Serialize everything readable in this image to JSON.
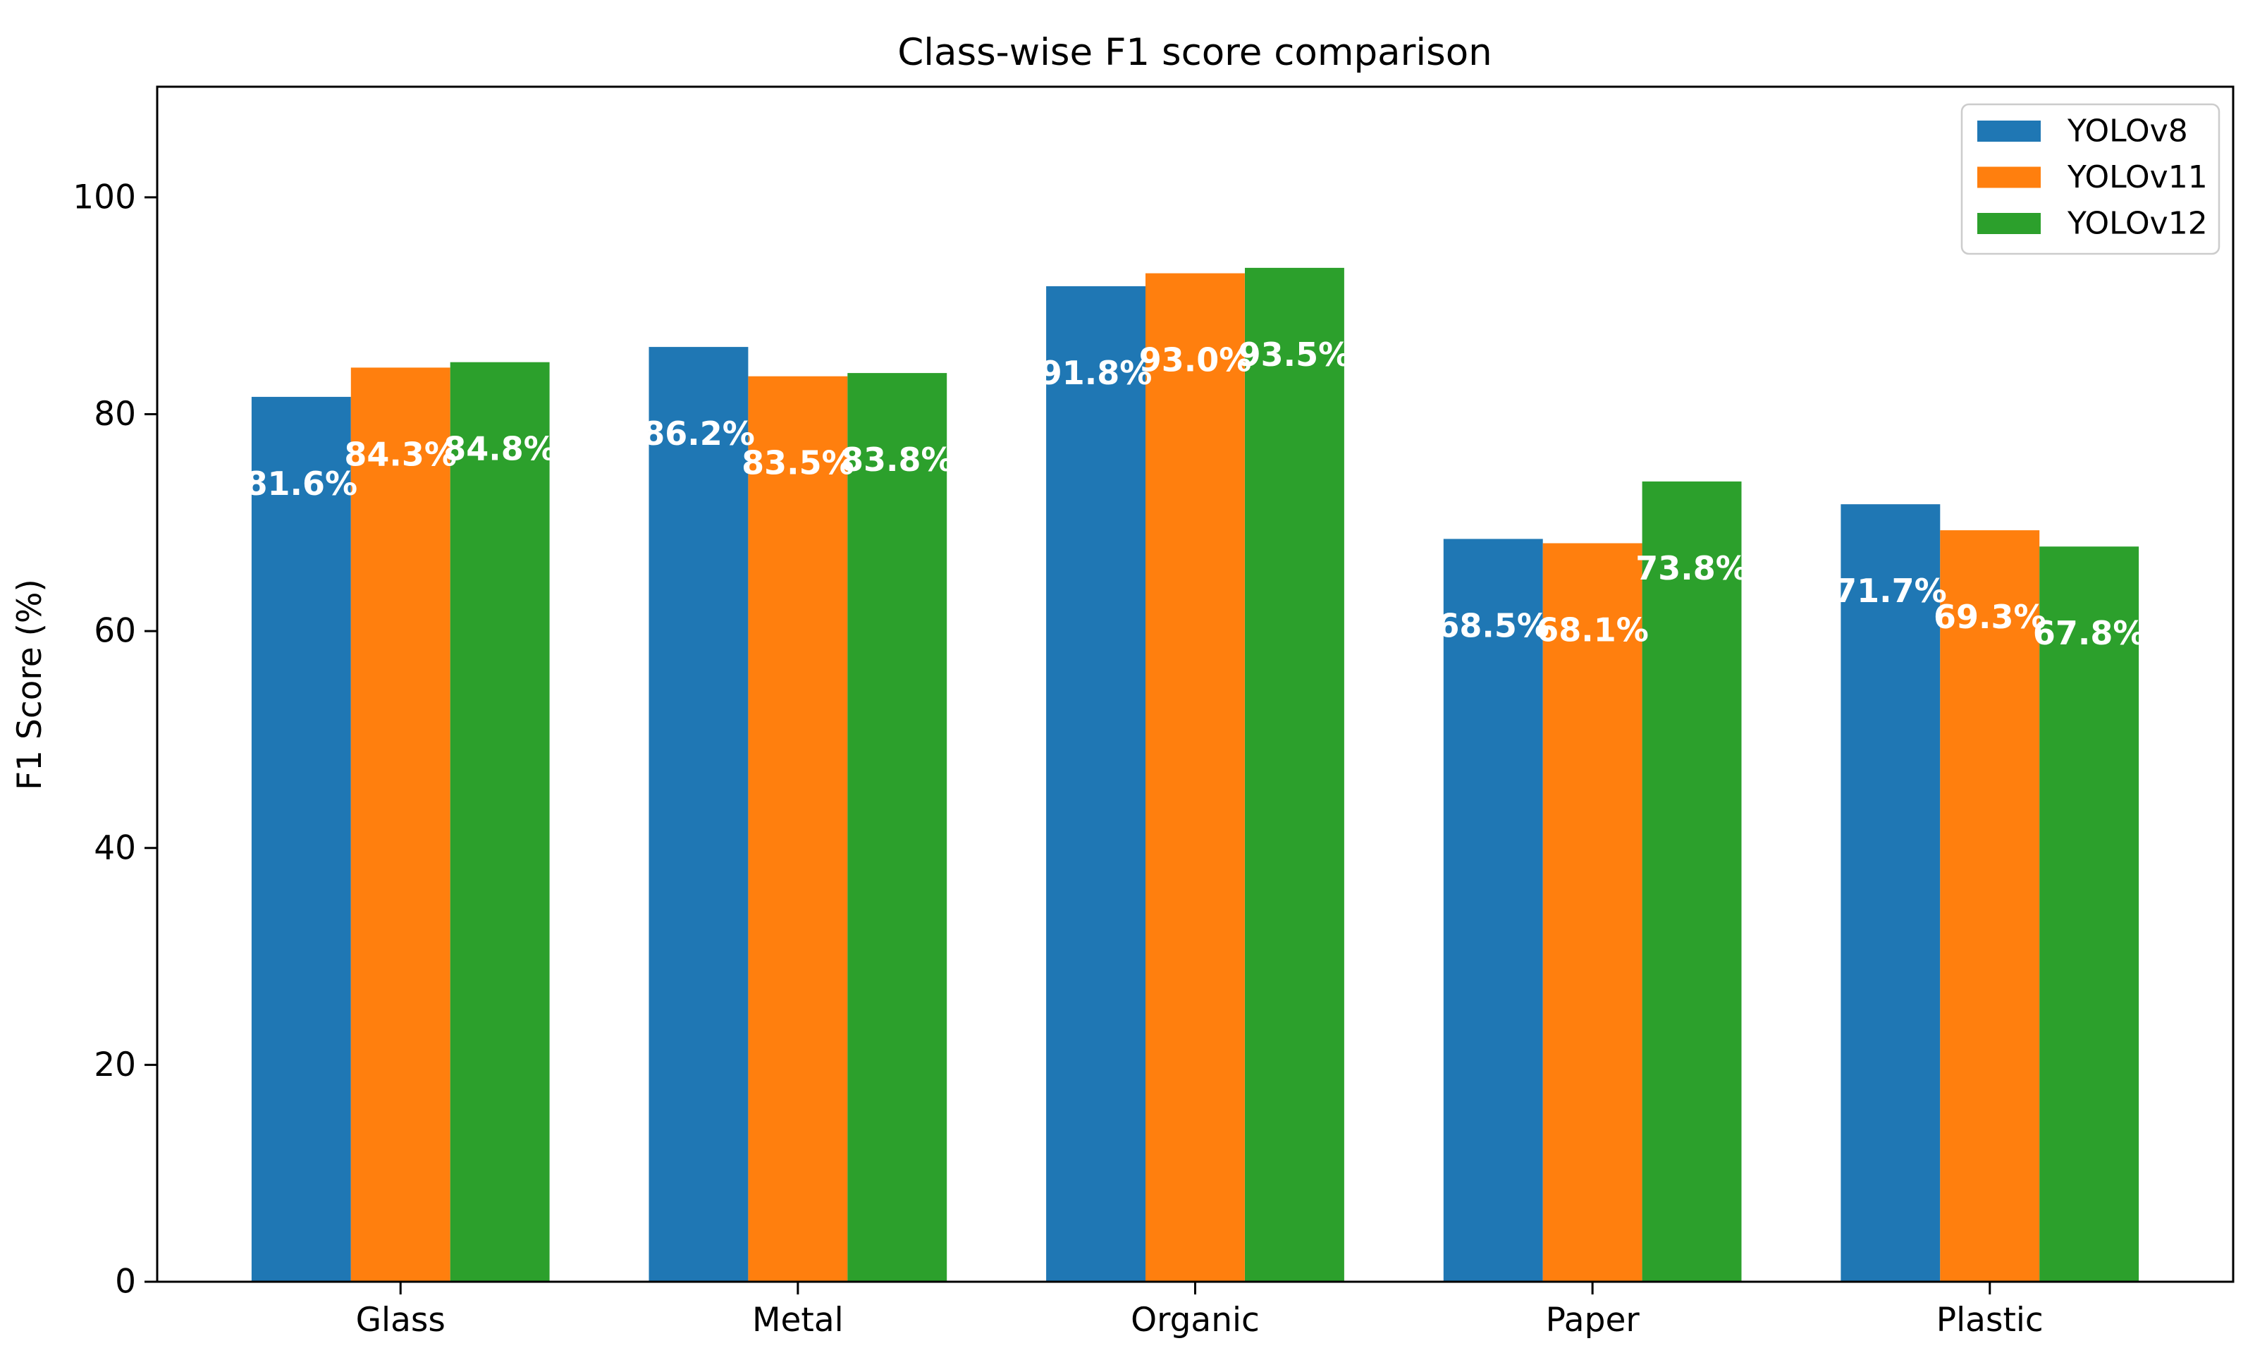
{
  "figure": {
    "background": "#ffffff"
  },
  "chart_data": {
    "type": "bar",
    "title": "Class-wise F1 score comparison",
    "xlabel": "",
    "ylabel": "F1 Score (%)",
    "categories": [
      "Glass",
      "Metal",
      "Organic",
      "Paper",
      "Plastic"
    ],
    "series": [
      {
        "name": "YOLOv8",
        "color": "#1f77b4",
        "values": [
          81.6,
          86.2,
          91.8,
          68.5,
          71.7
        ],
        "labels": [
          "81.6%",
          "86.2%",
          "91.8%",
          "68.5%",
          "71.7%"
        ]
      },
      {
        "name": "YOLOv11",
        "color": "#ff7f0e",
        "values": [
          84.3,
          83.5,
          93.0,
          68.1,
          69.3
        ],
        "labels": [
          "84.3%",
          "83.5%",
          "93.0%",
          "68.1%",
          "69.3%"
        ]
      },
      {
        "name": "YOLOv12",
        "color": "#2ca02c",
        "values": [
          84.8,
          83.8,
          93.5,
          73.8,
          67.8
        ],
        "labels": [
          "84.8%",
          "83.8%",
          "93.5%",
          "73.8%",
          "67.8%"
        ]
      }
    ],
    "yticks": [
      0,
      20,
      40,
      60,
      80,
      100
    ],
    "ylim": [
      0,
      110.2
    ],
    "bar_label_color": "#ffffff",
    "axis_color": "#000000",
    "legend": {
      "position": "upper right",
      "entries": [
        "YOLOv8",
        "YOLOv11",
        "YOLOv12"
      ],
      "border_color": "#cccccc",
      "background": "#ffffff"
    },
    "grid": false
  }
}
